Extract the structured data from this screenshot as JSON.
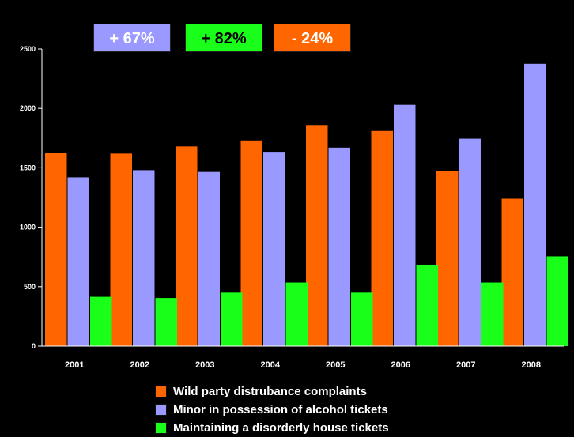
{
  "badges": [
    {
      "text": "+ 67%",
      "color": "#9999ff"
    },
    {
      "text": "+ 82%",
      "color": "#19ff19"
    },
    {
      "text": "- 24%",
      "color": "#ff6600"
    }
  ],
  "chart_data": {
    "type": "bar",
    "categories": [
      "2001",
      "2002",
      "2003",
      "2004",
      "2005",
      "2006",
      "2007",
      "2008"
    ],
    "series": [
      {
        "name": "Wild party distrubance complaints",
        "color": "#ff6600",
        "values": [
          1625,
          1620,
          1680,
          1730,
          1860,
          1810,
          1475,
          1240
        ]
      },
      {
        "name": "Minor in possession of alcohol tickets",
        "color": "#9999ff",
        "values": [
          1420,
          1480,
          1465,
          1635,
          1670,
          2030,
          1745,
          2375
        ]
      },
      {
        "name": "Maintaining a disorderly house tickets",
        "color": "#19ff19",
        "values": [
          415,
          405,
          450,
          535,
          450,
          685,
          535,
          755
        ]
      }
    ],
    "title": "",
    "xlabel": "",
    "ylabel": "",
    "ylim": [
      0,
      2500
    ],
    "yticks": [
      0,
      500,
      1000,
      1500,
      2000,
      2500
    ],
    "grid": false,
    "legend_position": "bottom"
  }
}
